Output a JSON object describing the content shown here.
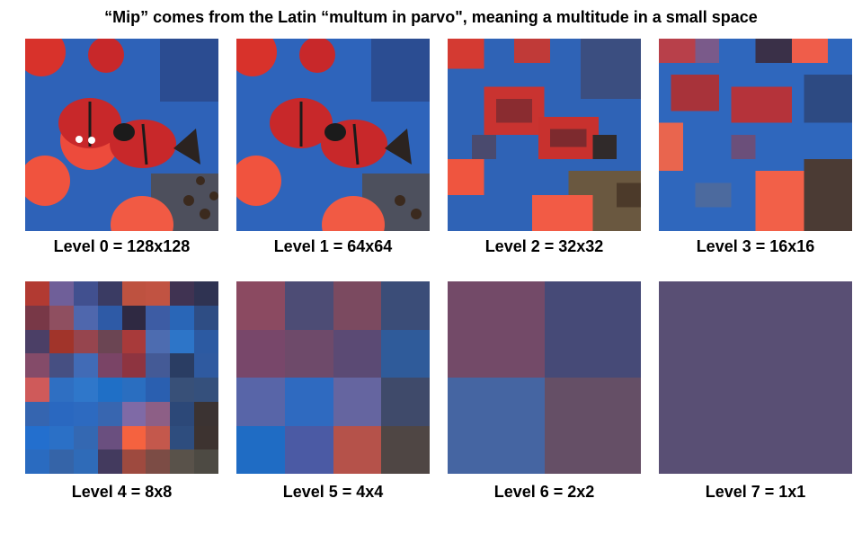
{
  "title": "“Mip” comes from the Latin “multum in parvo\", meaning a multitude in a small space",
  "levels": [
    {
      "label": "Level 0 = 128x128",
      "kind": "photo"
    },
    {
      "label": "Level 1 = 64x64",
      "kind": "photo"
    },
    {
      "label": "Level 2 = 32x32",
      "kind": "pixel"
    },
    {
      "label": "Level 3 = 16x16",
      "kind": "pixel"
    },
    {
      "label": "Level 4 = 8x8",
      "kind": "grid",
      "grid": [
        [
          "#b23a32",
          "#6f5f99",
          "#41508f",
          "#3a3b63",
          "#be5240",
          "#c15342",
          "#403352",
          "#2f3352"
        ],
        [
          "#783847",
          "#8f4f60",
          "#4f67ad",
          "#2e5aa6",
          "#2f2942",
          "#3d5ca4",
          "#2966b7",
          "#2e4d84"
        ],
        [
          "#4b3f66",
          "#a1342a",
          "#96454e",
          "#6b4553",
          "#a83a3a",
          "#4d6cb0",
          "#2d75c8",
          "#2c5aa2"
        ],
        [
          "#844b69",
          "#464f82",
          "#416bb6",
          "#7a4466",
          "#8e3440",
          "#445a96",
          "#2a3d63",
          "#2f5aa0"
        ],
        [
          "#cf5a5a",
          "#2f6fc2",
          "#2f77ca",
          "#1f6fc6",
          "#2a6ec0",
          "#2a5fb0",
          "#385078",
          "#35507c"
        ],
        [
          "#3565b0",
          "#2a68c0",
          "#2d6ac0",
          "#3866b0",
          "#7f6aa6",
          "#8d5f86",
          "#2c4878",
          "#3b3332"
        ],
        [
          "#236fce",
          "#2b70c6",
          "#3468b2",
          "#6a4f7f",
          "#f5623f",
          "#c4584c",
          "#2e4d7e",
          "#3d3330"
        ],
        [
          "#2a6bc0",
          "#3564a8",
          "#2f6bb8",
          "#433a5e",
          "#9e4a3f",
          "#7c4c45",
          "#59524a",
          "#4d4a43"
        ]
      ]
    },
    {
      "label": "Level 5 = 4x4",
      "kind": "grid",
      "grid": [
        [
          "#8b4a61",
          "#4d4c75",
          "#7b4a60",
          "#3b4d78"
        ],
        [
          "#78476a",
          "#6e4a6a",
          "#5b4a74",
          "#2f5b9a"
        ],
        [
          "#5865a8",
          "#2f6ac0",
          "#6565a0",
          "#3f4a6a"
        ],
        [
          "#1f6cc4",
          "#4b5aa4",
          "#b5524a",
          "#4f4644"
        ]
      ]
    },
    {
      "label": "Level 6 = 2x2",
      "kind": "grid",
      "grid": [
        [
          "#734a68",
          "#464a77"
        ],
        [
          "#4565a2",
          "#654f66"
        ]
      ]
    },
    {
      "label": "Level 7 = 1x1",
      "kind": "grid",
      "grid": [
        [
          "#594f74"
        ]
      ]
    }
  ]
}
